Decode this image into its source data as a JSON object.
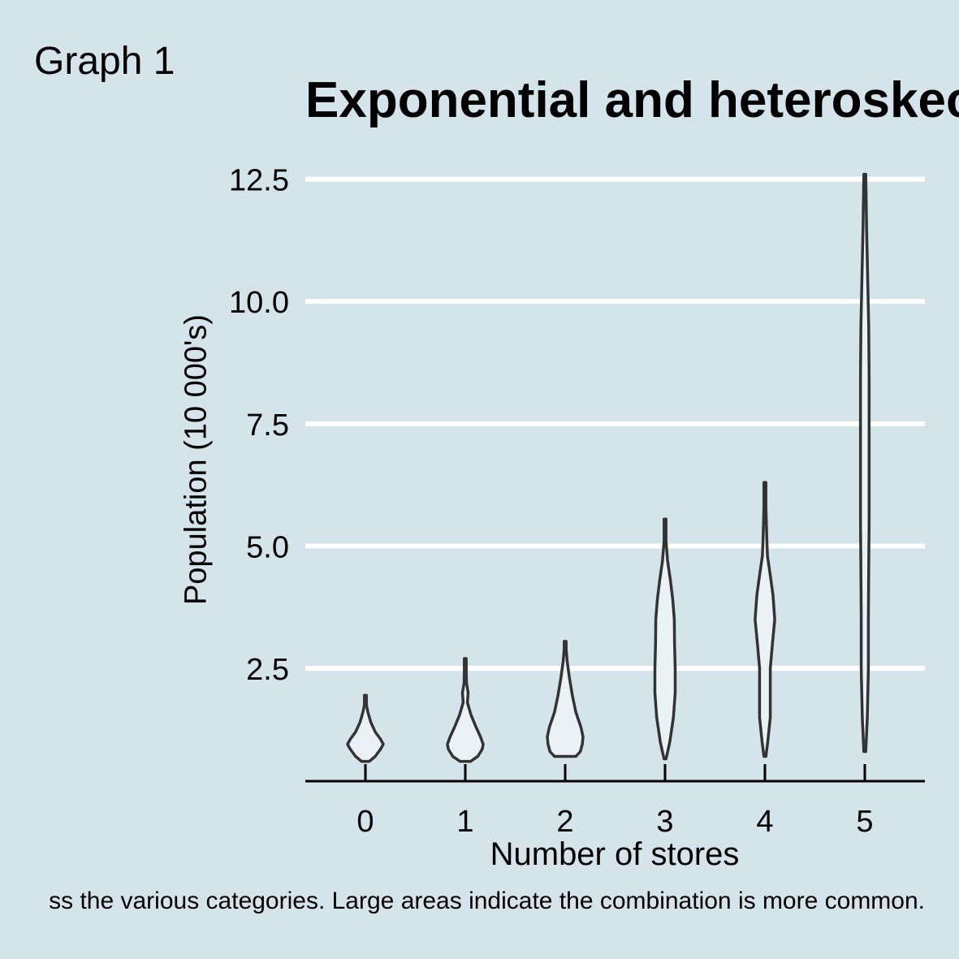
{
  "figure": {
    "tag": "Graph 1",
    "caption": "ss the various categories. Large areas indicate the combination is more common."
  },
  "colors": {
    "background": "#d5e4eb",
    "grid": "#ffffff",
    "violin_fill": "#eaf2f5",
    "violin_stroke": "#333333",
    "axis": "#000000"
  },
  "chart_data": {
    "type": "violin",
    "title": "Exponential and heteroskec",
    "xlabel": "Number of stores",
    "ylabel": "Population (10 000's)",
    "categories": [
      "0",
      "1",
      "2",
      "3",
      "4",
      "5"
    ],
    "ylim": [
      0,
      12.7
    ],
    "yticks": [
      "2.5",
      "5.0",
      "7.5",
      "10.0",
      "12.5"
    ],
    "grid": "horizontal",
    "violins": [
      {
        "category": "0",
        "min": 0.6,
        "max": 1.95,
        "density": [
          [
            0.6,
            0.22
          ],
          [
            0.7,
            0.55
          ],
          [
            0.85,
            0.85
          ],
          [
            0.95,
            1.0
          ],
          [
            1.05,
            0.85
          ],
          [
            1.2,
            0.55
          ],
          [
            1.4,
            0.3
          ],
          [
            1.6,
            0.14
          ],
          [
            1.75,
            0.06
          ],
          [
            1.95,
            0.0
          ]
        ]
      },
      {
        "category": "1",
        "min": 0.6,
        "max": 2.7,
        "density": [
          [
            0.6,
            0.3
          ],
          [
            0.7,
            0.7
          ],
          [
            0.85,
            0.95
          ],
          [
            0.95,
            1.0
          ],
          [
            1.1,
            0.85
          ],
          [
            1.3,
            0.6
          ],
          [
            1.55,
            0.32
          ],
          [
            1.8,
            0.12
          ],
          [
            2.0,
            0.16
          ],
          [
            2.2,
            0.07
          ],
          [
            2.45,
            0.05
          ],
          [
            2.7,
            0.0
          ]
        ]
      },
      {
        "category": "2",
        "min": 0.7,
        "max": 3.05,
        "density": [
          [
            0.7,
            0.6
          ],
          [
            0.8,
            0.85
          ],
          [
            0.95,
            0.96
          ],
          [
            1.1,
            1.0
          ],
          [
            1.3,
            0.88
          ],
          [
            1.6,
            0.6
          ],
          [
            1.95,
            0.4
          ],
          [
            2.3,
            0.24
          ],
          [
            2.65,
            0.11
          ],
          [
            2.9,
            0.04
          ],
          [
            3.05,
            0.0
          ]
        ]
      },
      {
        "category": "3",
        "min": 0.65,
        "max": 5.55,
        "density": [
          [
            0.65,
            0.05
          ],
          [
            0.75,
            0.12
          ],
          [
            1.0,
            0.27
          ],
          [
            1.5,
            0.47
          ],
          [
            2.0,
            0.57
          ],
          [
            2.5,
            0.57
          ],
          [
            3.0,
            0.53
          ],
          [
            3.5,
            0.52
          ],
          [
            3.9,
            0.43
          ],
          [
            4.3,
            0.3
          ],
          [
            4.7,
            0.14
          ],
          [
            5.1,
            0.05
          ],
          [
            5.55,
            0.0
          ]
        ]
      },
      {
        "category": "4",
        "min": 0.7,
        "max": 6.3,
        "density": [
          [
            0.7,
            0.03
          ],
          [
            1.0,
            0.16
          ],
          [
            1.5,
            0.3
          ],
          [
            2.0,
            0.3
          ],
          [
            2.5,
            0.3
          ],
          [
            3.0,
            0.42
          ],
          [
            3.5,
            0.55
          ],
          [
            4.0,
            0.45
          ],
          [
            4.4,
            0.3
          ],
          [
            4.8,
            0.14
          ],
          [
            5.2,
            0.1
          ],
          [
            5.8,
            0.05
          ],
          [
            6.3,
            0.0
          ]
        ]
      },
      {
        "category": "5",
        "min": 0.8,
        "max": 12.6,
        "density": [
          [
            0.8,
            0.05
          ],
          [
            1.5,
            0.14
          ],
          [
            2.5,
            0.2
          ],
          [
            3.5,
            0.2
          ],
          [
            4.5,
            0.22
          ],
          [
            5.5,
            0.24
          ],
          [
            6.5,
            0.24
          ],
          [
            7.5,
            0.24
          ],
          [
            8.5,
            0.24
          ],
          [
            9.5,
            0.22
          ],
          [
            10.5,
            0.16
          ],
          [
            11.5,
            0.1
          ],
          [
            12.6,
            0.0
          ]
        ]
      }
    ]
  }
}
